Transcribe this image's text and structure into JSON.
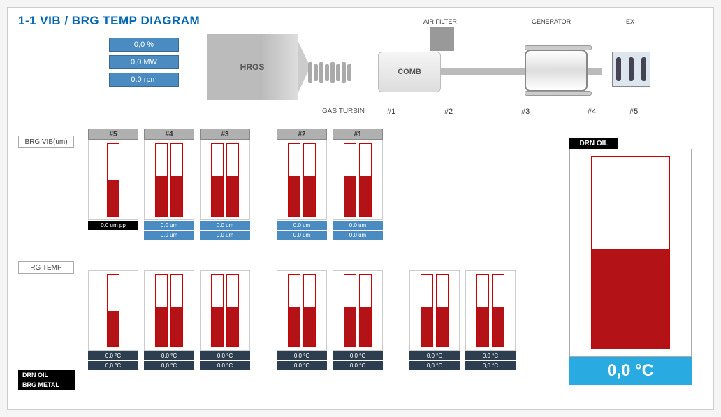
{
  "title": "1-1 VIB / BRG TEMP DIAGRAM",
  "stats": {
    "pct": "0,0 %",
    "mw": "0,0 MW",
    "rpm": "0,0 rpm"
  },
  "schematic": {
    "hrgs": "HRGS",
    "turbine_label": "GAS TURBIN",
    "comb": "COMB",
    "air_filter": "AIR FILTER",
    "generator": "GENERATOR",
    "ex": "EX",
    "positions": {
      "n1": "#1",
      "n2": "#2",
      "n3": "#3",
      "n4": "#4",
      "n5": "#5"
    }
  },
  "row1": {
    "label": "BRG VIB(um)",
    "gauges": [
      {
        "hd": "#5",
        "bars": [
          50
        ],
        "vals": [
          {
            "t": "0.0 um pp",
            "c": "val-black"
          }
        ]
      },
      {
        "hd": "#4",
        "bars": [
          55,
          55
        ],
        "vals": [
          {
            "t": "0.0 um",
            "c": "val-blue"
          },
          {
            "t": "0.0 um",
            "c": "val-blue"
          }
        ]
      },
      {
        "hd": "#3",
        "bars": [
          55,
          55
        ],
        "vals": [
          {
            "t": "0.0 um",
            "c": "val-blue"
          },
          {
            "t": "0.0 um",
            "c": "val-blue"
          }
        ]
      },
      {
        "hd": "#2",
        "bars": [
          55,
          55
        ],
        "vals": [
          {
            "t": "0.0 um",
            "c": "val-blue"
          },
          {
            "t": "0.0 um",
            "c": "val-blue"
          }
        ]
      },
      {
        "hd": "#1",
        "bars": [
          55,
          55
        ],
        "vals": [
          {
            "t": "0.0 um",
            "c": "val-blue"
          },
          {
            "t": "0.0 um",
            "c": "val-blue"
          }
        ]
      }
    ]
  },
  "row2": {
    "label": "RG TEMP",
    "side_labels": [
      "DRN OIL",
      "BRG METAL"
    ],
    "gauges": [
      {
        "bars": [
          50
        ],
        "vals": [
          {
            "t": "0,0 °C",
            "c": "val-navy"
          },
          {
            "t": "0,0 °C",
            "c": "val-navy"
          }
        ]
      },
      {
        "bars": [
          55,
          55
        ],
        "vals": [
          {
            "t": "0,0 °C",
            "c": "val-navy"
          },
          {
            "t": "0,0 °C",
            "c": "val-navy"
          }
        ]
      },
      {
        "bars": [
          55,
          55
        ],
        "vals": [
          {
            "t": "0,0 °C",
            "c": "val-navy"
          },
          {
            "t": "0,0 °C",
            "c": "val-navy"
          }
        ]
      },
      {
        "bars": [
          55,
          55
        ],
        "vals": [
          {
            "t": "0,0 °C",
            "c": "val-navy"
          },
          {
            "t": "0,0 °C",
            "c": "val-navy"
          }
        ]
      },
      {
        "bars": [
          55,
          55
        ],
        "vals": [
          {
            "t": "0,0 °C",
            "c": "val-navy"
          },
          {
            "t": "0,0 °C",
            "c": "val-navy"
          }
        ]
      },
      {
        "bars": [
          55,
          55
        ],
        "vals": [
          {
            "t": "0,0 °C",
            "c": "val-navy"
          },
          {
            "t": "0,0 °C",
            "c": "val-navy"
          }
        ]
      },
      {
        "bars": [
          55,
          55
        ],
        "vals": [
          {
            "t": "0,0 °C",
            "c": "val-navy"
          },
          {
            "t": "0,0 °C",
            "c": "val-navy"
          }
        ]
      }
    ]
  },
  "drn_panel": {
    "label": "DRN OIL",
    "fill": 52,
    "value": "0,0 °C"
  },
  "layout": {
    "row1_x": [
      100,
      180,
      260,
      370,
      450
    ],
    "row2_x": [
      100,
      180,
      260,
      370,
      450,
      560,
      640
    ]
  }
}
